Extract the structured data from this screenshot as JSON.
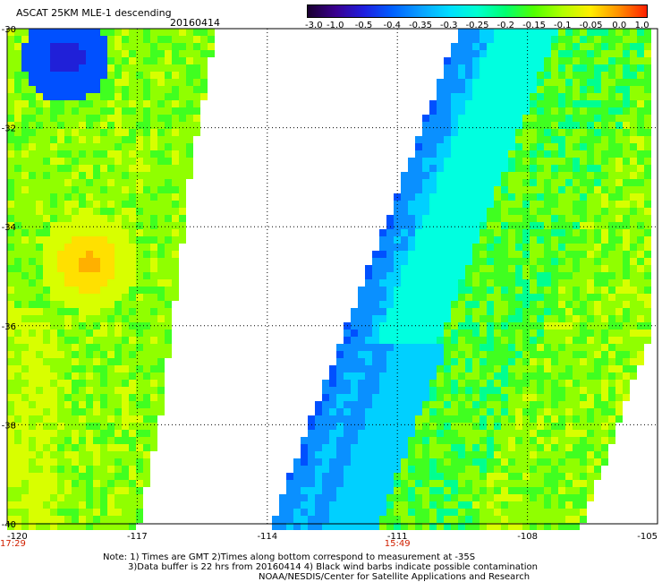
{
  "title": "ASCAT 25KM MLE-1 descending",
  "date": "20160414",
  "colorbar": {
    "labels": [
      "-3.0",
      "-1.0",
      "-0.5",
      "-0.4",
      "-0.35",
      "-0.3",
      "-0.25",
      "-0.2",
      "-0.15",
      "-0.1",
      "-0.05",
      "0.0",
      "1.0"
    ],
    "colors": [
      "#1a0030",
      "#3a0090",
      "#1f1fe0",
      "#0060ff",
      "#0aa0ff",
      "#00ddff",
      "#00ffd0",
      "#00ff70",
      "#50ff00",
      "#b0ff00",
      "#ffee00",
      "#ff9000",
      "#ff2000"
    ]
  },
  "axes": {
    "lat_labels": [
      "-30",
      "-32",
      "-34",
      "-36",
      "-38",
      "-40"
    ],
    "lon_labels": [
      "-120",
      "-117",
      "-114",
      "-111",
      "-108",
      "-105"
    ],
    "lon_range": [
      -120,
      -105
    ],
    "lat_range": [
      -40,
      -30
    ]
  },
  "times": [
    {
      "text": "17:29",
      "lon": -120
    },
    {
      "text": "15:49",
      "lon": -111
    }
  ],
  "notes": [
    "Note: 1) Times are GMT 2)Times along bottom correspond to measurement at -35S",
    "3)Data buffer is 22 hrs from 20160414 4) Black wind barbs indicate possible contamination",
    "NOAA/NESDIS/Center for Satellite Applications and Research"
  ]
}
